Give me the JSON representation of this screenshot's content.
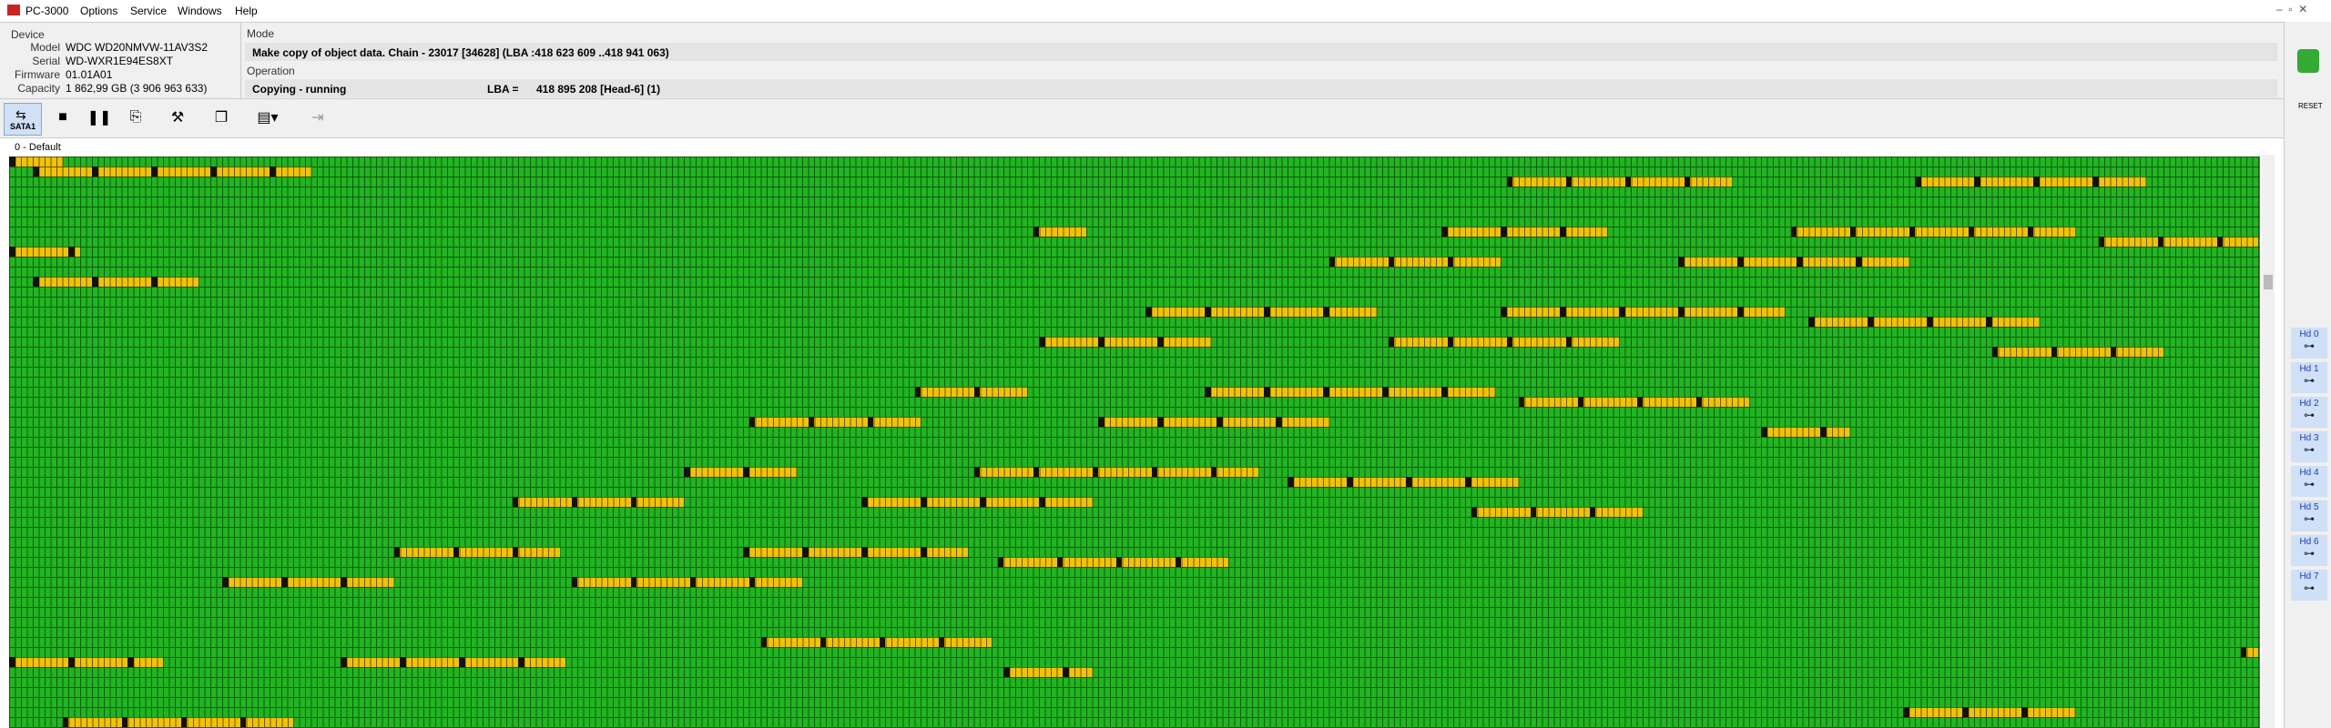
{
  "app": {
    "title": "PC-3000",
    "menu": [
      "Options",
      "Service",
      "Windows",
      "Help"
    ]
  },
  "device": {
    "heading": "Device",
    "fields": [
      [
        "Model",
        "WDC WD20NMVW-11AV3S2"
      ],
      [
        "Serial",
        "WD-WXR1E94ES8XT"
      ],
      [
        "Firmware",
        "01.01A01"
      ],
      [
        "Capacity",
        "1 862,99 GB (3 906 963 633)"
      ]
    ]
  },
  "mode": {
    "heading": "Mode",
    "text": "Make copy of object data. Chain - 23017 [34628] (LBA :418 623 609 ..418 941 063)"
  },
  "operation": {
    "heading": "Operation",
    "status": "Copying - running",
    "lba_label": "LBA =",
    "lba": "418 895 208  [Head-6] (1)"
  },
  "toolbar": {
    "port": "SATA1"
  },
  "map": {
    "tab": "0 - Default"
  },
  "sidebar": {
    "reset": "RESET",
    "heads": [
      "Hd 0",
      "Hd 1",
      "Hd 2",
      "Hd 3",
      "Hd 4",
      "Hd 5",
      "Hd 6",
      "Hd 7"
    ]
  }
}
